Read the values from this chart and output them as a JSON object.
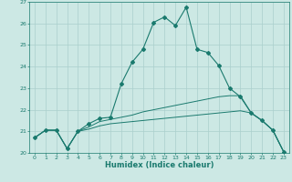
{
  "xlabel": "Humidex (Indice chaleur)",
  "bg_color": "#cce8e4",
  "grid_color": "#aacfcc",
  "line_color": "#1a7a6e",
  "xlim": [
    -0.5,
    23.5
  ],
  "ylim": [
    20,
    27
  ],
  "yticks": [
    20,
    21,
    22,
    23,
    24,
    25,
    26,
    27
  ],
  "xticks": [
    0,
    1,
    2,
    3,
    4,
    5,
    6,
    7,
    8,
    9,
    10,
    11,
    12,
    13,
    14,
    15,
    16,
    17,
    18,
    19,
    20,
    21,
    22,
    23
  ],
  "line1_x": [
    0,
    1,
    2,
    3,
    4,
    5,
    6,
    7,
    8,
    9,
    10,
    11,
    12,
    13,
    14,
    15,
    16,
    17,
    18,
    19,
    20,
    21,
    22,
    23
  ],
  "line1_y": [
    20.7,
    21.05,
    21.05,
    20.2,
    21.0,
    21.35,
    21.6,
    21.65,
    23.2,
    24.2,
    24.8,
    26.05,
    26.3,
    25.9,
    26.75,
    24.8,
    24.65,
    24.05,
    23.0,
    22.6,
    21.85,
    21.5,
    21.05,
    20.05
  ],
  "line2_x": [
    0,
    1,
    2,
    3,
    4,
    5,
    6,
    7,
    8,
    9,
    10,
    11,
    12,
    13,
    14,
    15,
    16,
    17,
    18,
    19,
    20,
    21,
    22,
    23
  ],
  "line2_y": [
    20.7,
    21.05,
    21.05,
    20.2,
    21.0,
    21.2,
    21.45,
    21.55,
    21.65,
    21.75,
    21.9,
    22.0,
    22.1,
    22.2,
    22.3,
    22.4,
    22.5,
    22.6,
    22.65,
    22.65,
    21.85,
    21.5,
    21.05,
    20.05
  ],
  "line3_x": [
    0,
    1,
    2,
    3,
    4,
    5,
    6,
    7,
    8,
    9,
    10,
    11,
    12,
    13,
    14,
    15,
    16,
    17,
    18,
    19,
    20,
    21,
    22,
    23
  ],
  "line3_y": [
    20.7,
    21.05,
    21.05,
    20.2,
    21.0,
    21.1,
    21.25,
    21.35,
    21.4,
    21.45,
    21.5,
    21.55,
    21.6,
    21.65,
    21.7,
    21.75,
    21.8,
    21.85,
    21.9,
    21.95,
    21.85,
    21.5,
    21.05,
    20.05
  ]
}
